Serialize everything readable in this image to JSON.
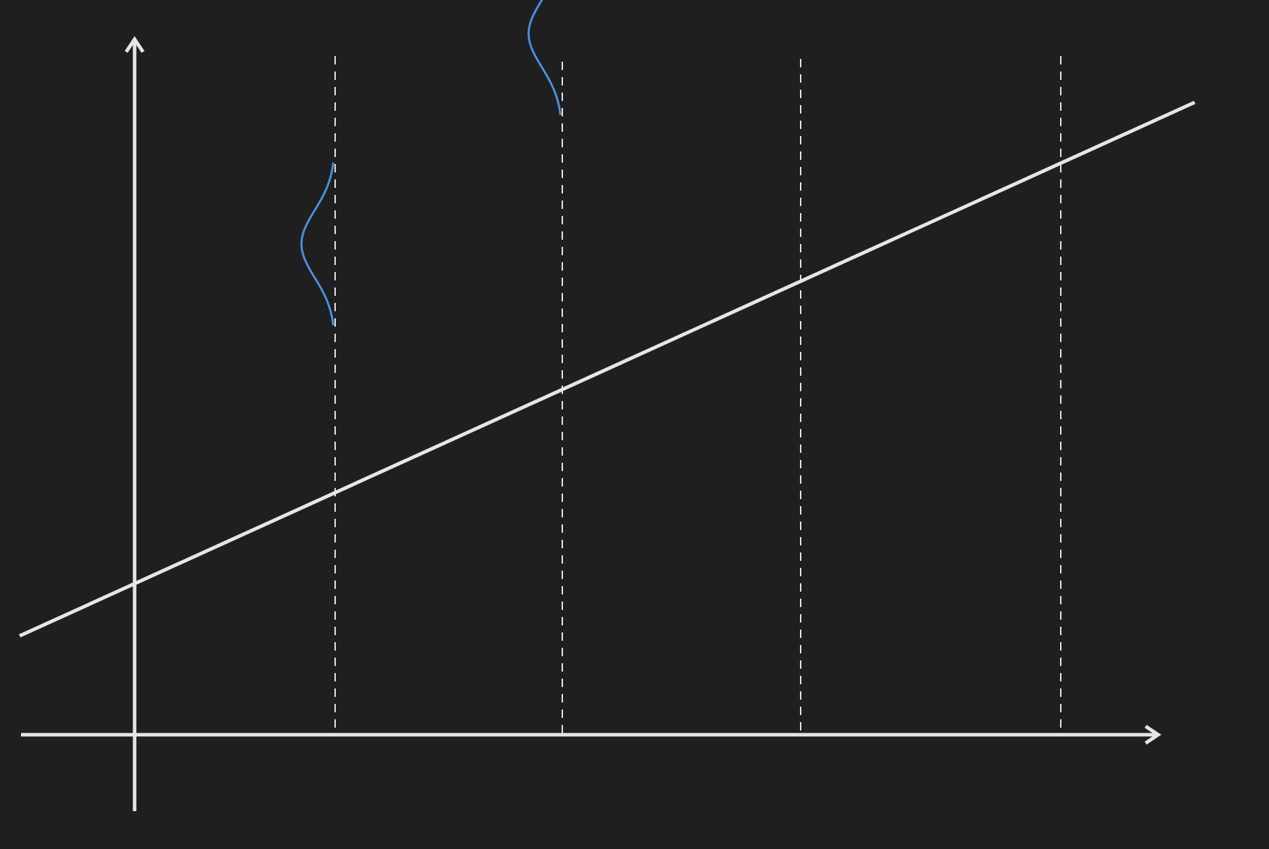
{
  "figure": {
    "background_color": "#1f1f20",
    "line_color": "#e6e6e6",
    "distribution_color": "#4a8fe0"
  },
  "line": {
    "intercept": 1,
    "slope": 0.75
  },
  "x_values": [
    1,
    2,
    3,
    4
  ],
  "distribution": {
    "shape": "normal",
    "side": "left-facing",
    "sd": 0.3
  }
}
